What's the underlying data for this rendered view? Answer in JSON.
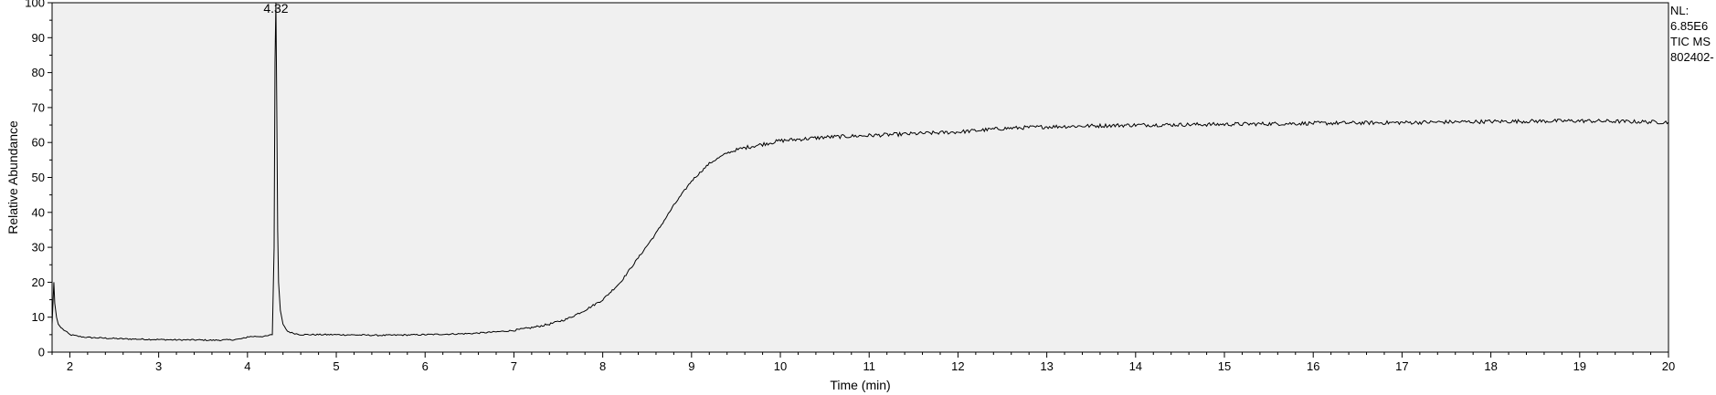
{
  "info": {
    "normalization_label": "NL:",
    "normalization_value": "6.85E6",
    "scan_filter": "TIC  MS",
    "file_name": "802402-"
  },
  "chart_data": {
    "type": "line",
    "title": "",
    "xlabel": "Time (min)",
    "ylabel": "Relative Abundance",
    "xlim": [
      1.8,
      20
    ],
    "ylim": [
      0,
      100
    ],
    "x_ticks": [
      2,
      3,
      4,
      5,
      6,
      7,
      8,
      9,
      10,
      11,
      12,
      13,
      14,
      15,
      16,
      17,
      18,
      19,
      20
    ],
    "y_ticks": [
      0,
      10,
      20,
      30,
      40,
      50,
      60,
      70,
      80,
      90,
      100
    ],
    "grid": false,
    "legend": "none",
    "annotations": [
      {
        "text": "4.32",
        "x": 4.32,
        "y": 100
      }
    ],
    "series": [
      {
        "color": "#000000",
        "x": [
          1.8,
          1.82,
          1.83,
          1.85,
          1.87,
          1.9,
          1.95,
          2.0,
          2.1,
          2.2,
          2.4,
          2.6,
          2.8,
          3.0,
          3.2,
          3.4,
          3.6,
          3.8,
          3.9,
          3.97,
          4.0,
          4.1,
          4.2,
          4.28,
          4.3,
          4.31,
          4.32,
          4.33,
          4.34,
          4.35,
          4.37,
          4.4,
          4.45,
          4.5,
          4.6,
          4.8,
          5.0,
          5.5,
          6.0,
          6.5,
          6.8,
          7.0,
          7.2,
          7.4,
          7.6,
          7.8,
          8.0,
          8.2,
          8.4,
          8.6,
          8.8,
          9.0,
          9.2,
          9.4,
          9.6,
          9.8,
          10.0,
          10.5,
          11.0,
          11.5,
          12.0,
          12.5,
          13.0,
          14.0,
          15.0,
          16.0,
          17.0,
          18.0,
          19.0,
          20.0
        ],
        "y": [
          8,
          20,
          14,
          10,
          8,
          7,
          6,
          5,
          4.5,
          4.2,
          4,
          3.8,
          3.7,
          3.6,
          3.5,
          3.5,
          3.4,
          3.5,
          3.7,
          4.0,
          4.4,
          4.5,
          4.5,
          5,
          30,
          83,
          100,
          70,
          35,
          20,
          12,
          8,
          6,
          5.5,
          5,
          5,
          5,
          4.8,
          5,
          5.3,
          5.8,
          6.2,
          7,
          8,
          9.5,
          12,
          15,
          20,
          27,
          34,
          42,
          49,
          54,
          57,
          58.5,
          59.5,
          60.5,
          61.5,
          62,
          62.5,
          63,
          64,
          64.5,
          65,
          65.2,
          65.5,
          65.7,
          66,
          66.2,
          65.8
        ]
      }
    ]
  }
}
